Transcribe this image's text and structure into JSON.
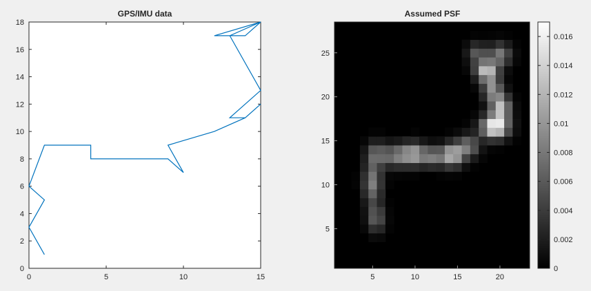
{
  "chart_data": [
    {
      "type": "line",
      "title": "GPS/IMU data",
      "xlabel": "",
      "ylabel": "",
      "xlim": [
        0,
        15
      ],
      "ylim": [
        0,
        18
      ],
      "xticks": [
        0,
        5,
        10,
        15
      ],
      "yticks": [
        0,
        2,
        4,
        6,
        8,
        10,
        12,
        14,
        16,
        18
      ],
      "grid": false,
      "line_color": "#0072bd",
      "series": [
        {
          "x": [
            1,
            0,
            1,
            0,
            1,
            4,
            4,
            9,
            10,
            9,
            12,
            14,
            15,
            14,
            13,
            15,
            13,
            14,
            15,
            13,
            12,
            15
          ],
          "y": [
            1,
            3,
            5,
            6,
            9,
            9,
            8,
            8,
            7,
            9,
            10,
            11,
            12,
            11,
            11,
            13,
            17,
            17,
            18,
            17,
            17,
            18
          ]
        }
      ]
    },
    {
      "type": "heatmap",
      "title": "Assumed PSF",
      "xlabel": "",
      "ylabel": "",
      "colormap": "gray",
      "size": [
        23,
        28
      ],
      "xlim": [
        0.5,
        23.5
      ],
      "ylim": [
        0.5,
        28.5
      ],
      "xticks": [
        5,
        10,
        15,
        20
      ],
      "yticks": [
        5,
        10,
        15,
        20,
        25
      ],
      "colorbar": {
        "min": 0,
        "max": 0.017,
        "ticks": [
          "0",
          "0.002",
          "0.004",
          "0.006",
          "0.008",
          "0.01",
          "0.012",
          "0.014",
          "0.016"
        ]
      },
      "blobs": [
        {
          "x": 5,
          "y": 10.2,
          "sx": 0.75,
          "sy": 1.6,
          "amp": 0.0085
        },
        {
          "x": 5.4,
          "y": 6.2,
          "sx": 0.7,
          "sy": 1.1,
          "amp": 0.0065
        },
        {
          "x": 5.4,
          "y": 13.5,
          "sx": 0.8,
          "sy": 1.0,
          "amp": 0.0065
        },
        {
          "x": 7.6,
          "y": 13.3,
          "sx": 1.0,
          "sy": 0.9,
          "amp": 0.0075
        },
        {
          "x": 9.8,
          "y": 13.5,
          "sx": 1.0,
          "sy": 0.9,
          "amp": 0.011
        },
        {
          "x": 12.1,
          "y": 13.2,
          "sx": 0.9,
          "sy": 0.8,
          "amp": 0.0075
        },
        {
          "x": 14.4,
          "y": 13.4,
          "sx": 0.9,
          "sy": 0.9,
          "amp": 0.0125
        },
        {
          "x": 16.3,
          "y": 14.4,
          "sx": 0.9,
          "sy": 0.9,
          "amp": 0.0075
        },
        {
          "x": 19.4,
          "y": 16.6,
          "sx": 1.1,
          "sy": 0.9,
          "amp": 0.017
        },
        {
          "x": 20.1,
          "y": 18.8,
          "sx": 0.8,
          "sy": 1.0,
          "amp": 0.012
        },
        {
          "x": 19.1,
          "y": 20.9,
          "sx": 0.8,
          "sy": 1.0,
          "amp": 0.009
        },
        {
          "x": 18.4,
          "y": 23,
          "sx": 0.9,
          "sy": 0.8,
          "amp": 0.013
        },
        {
          "x": 20,
          "y": 24.8,
          "sx": 0.9,
          "sy": 0.9,
          "amp": 0.008
        },
        {
          "x": 17.3,
          "y": 25,
          "sx": 0.8,
          "sy": 0.8,
          "amp": 0.006
        }
      ]
    }
  ]
}
